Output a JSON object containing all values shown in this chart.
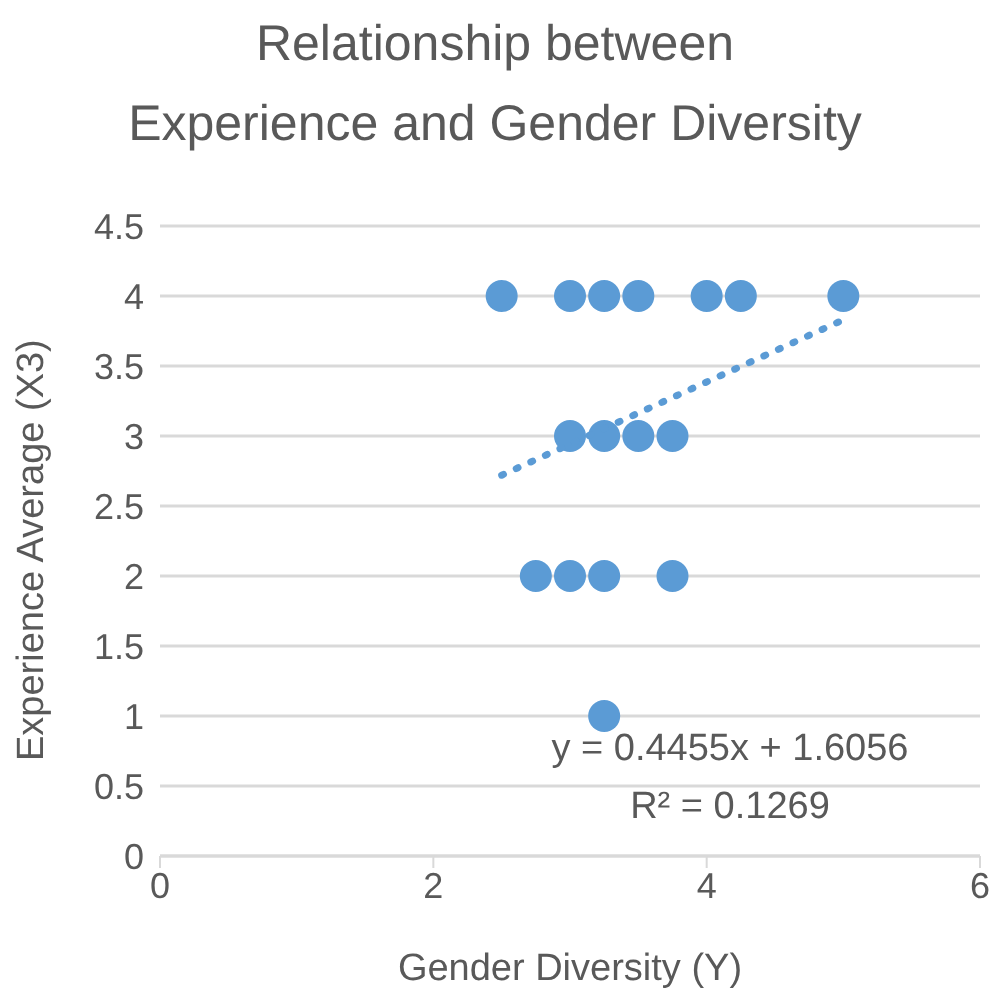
{
  "chart_data": {
    "type": "scatter",
    "title": "Relationship between Experience and Gender Diversity",
    "xlabel": "Gender Diversity (Y)",
    "ylabel": "Experience Average (X3)",
    "series": [
      {
        "color": "#5b9bd5",
        "x": [
          2.5,
          3,
          3.25,
          3.5,
          4,
          4.25,
          5,
          3,
          3.25,
          3.5,
          3.75,
          2.75,
          3,
          3.25,
          3.75,
          3.25
        ],
        "values": [
          4,
          4,
          4,
          4,
          4,
          4,
          4,
          3,
          3,
          3,
          3,
          2,
          2,
          2,
          2,
          1
        ]
      },
      {
        "type": "line",
        "color": "#5b9bd5",
        "line_style": "dotted",
        "marker": "none",
        "x": [
          2.5,
          5
        ],
        "values": [
          2.72,
          3.83
        ]
      }
    ],
    "annotations": [
      "y = 0.4455x + 1.6056",
      "R² = 0.1269"
    ],
    "xlim": [
      0,
      6
    ],
    "xticks": [
      0,
      2,
      4,
      6
    ],
    "ylim": [
      0,
      4.5
    ],
    "yticks": [
      0,
      0.5,
      1,
      1.5,
      2,
      2.5,
      3,
      3.5,
      4,
      4.5
    ],
    "grid": "y",
    "marker": "circle"
  }
}
